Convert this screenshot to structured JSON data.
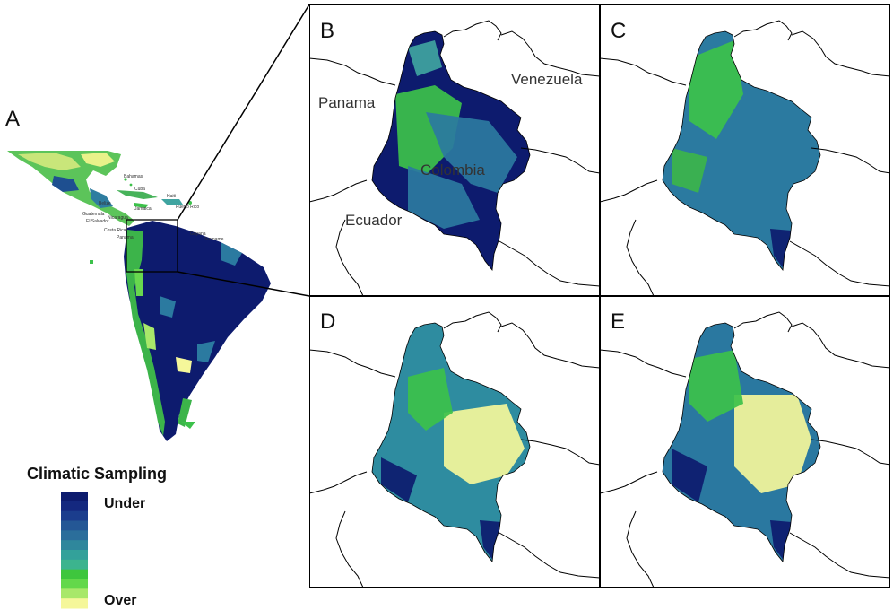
{
  "panels": {
    "a": {
      "letter": "A"
    },
    "b": {
      "letter": "B",
      "countries": [
        "Panama",
        "Venezuela",
        "Colombia",
        "Ecuador"
      ]
    },
    "c": {
      "letter": "C"
    },
    "d": {
      "letter": "D"
    },
    "e": {
      "letter": "E"
    }
  },
  "legend": {
    "title": "Climatic Sampling",
    "top_label": "Under",
    "bottom_label": "Over",
    "colors": [
      "#0d1b6e",
      "#14287f",
      "#1b3d8d",
      "#245795",
      "#2b6e9b",
      "#2f879c",
      "#33a19a",
      "#3cb48e",
      "#3ec63d",
      "#63d84a",
      "#a8e86a",
      "#f5f79a"
    ]
  },
  "overview_labels": [
    "Bahamas",
    "Cuba",
    "Haiti",
    "Jamaica",
    "Puerto Rico",
    "Belize",
    "Guatemala",
    "El Salvador",
    "Nicaragua",
    "Costa Rica",
    "Panama",
    "Guyana",
    "Suriname"
  ],
  "map_colors": {
    "under": "#0d1b6e",
    "mid": "#2b7aa0",
    "good": "#3cc14a",
    "over": "#f5f79a",
    "land_outline": "#000000"
  }
}
